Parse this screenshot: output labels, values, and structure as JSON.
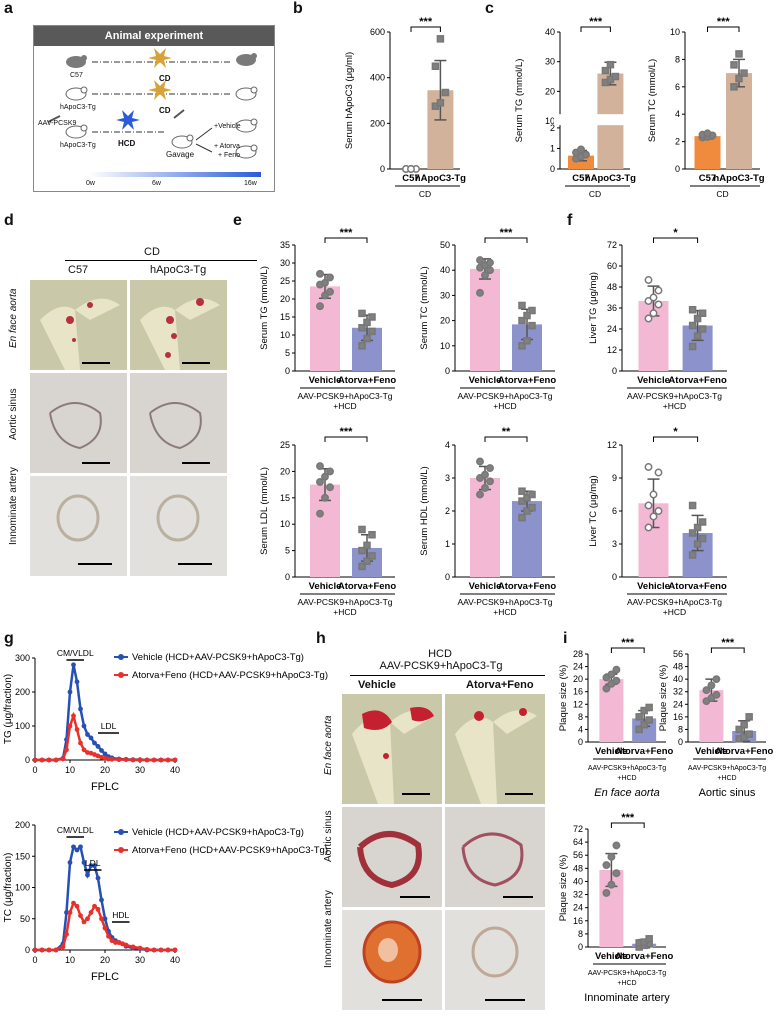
{
  "panel_labels": {
    "a": "a",
    "b": "b",
    "c": "c",
    "d": "d",
    "e": "e",
    "f": "f",
    "g": "g",
    "h": "h",
    "i": "i"
  },
  "colors": {
    "pink": "#f2b8d4",
    "purple": "#8b92cc",
    "tan": "#d2b29a",
    "orange": "#f08a3c",
    "blue": "#2750b4",
    "red": "#e8312a",
    "gray_point": "#808080"
  },
  "panel_a": {
    "title": "Animal experiment",
    "c57": "C57",
    "hapoc3": "hApoC3-Tg",
    "aav": "AAV-PCSK9",
    "hapoc3_2": "hApoC3-Tg",
    "cd1": "CD",
    "cd2": "CD",
    "hcd": "HCD",
    "gavage": "Gavage",
    "vehicle": "+Vehicle",
    "atorva": "+ Atorva",
    "feno": "+ Feno",
    "w0": "0w",
    "w6": "6w",
    "w16": "16w"
  },
  "panel_d": {
    "group": "CD",
    "col1": "C57",
    "col2": "hApoC3-Tg",
    "row1": "En face  aorta",
    "row2": "Aortic sinus",
    "row3": "Innominate artery"
  },
  "panel_h": {
    "group": "HCD",
    "group2": "AAV-PCSK9+hApoC3-Tg",
    "col1": "Vehicle",
    "col2": "Atorva+Feno",
    "row1": "En face  aorta",
    "row2": "Aortic sinus",
    "row3": "Innominate artery"
  },
  "chart_data": [
    {
      "id": "b",
      "type": "bar",
      "ylabel": "Serum hApoC3 (μg/ml)",
      "ylim": [
        0,
        600
      ],
      "yticks": [
        "0",
        "200",
        "400",
        "600"
      ],
      "categories": [
        "C57",
        "hApoC3-Tg"
      ],
      "values": [
        0,
        345
      ],
      "errors": [
        0,
        130
      ],
      "points": [
        [
          0,
          0,
          0,
          0,
          0
        ],
        [
          275,
          290,
          335,
          450,
          570
        ]
      ],
      "xgroup": "CD",
      "sig": "***"
    },
    {
      "id": "c1",
      "type": "bar",
      "ylabel": "Serum TG (mmol/L)",
      "ylim": [
        0,
        40
      ],
      "yticks": [
        "0",
        "1",
        "2",
        "10",
        "20",
        "30",
        "40"
      ],
      "categories": [
        "C57",
        "hApoC3-Tg"
      ],
      "values": [
        0.65,
        26
      ],
      "errors": [
        0.25,
        3.8
      ],
      "points": [
        [
          0.5,
          0.6,
          0.7,
          0.8,
          0.95
        ],
        [
          23,
          24,
          25,
          27,
          29
        ]
      ],
      "xgroup": "CD",
      "sig": "***"
    },
    {
      "id": "c2",
      "type": "bar",
      "ylabel": "Serum TC (mmol/L)",
      "ylim": [
        0,
        10
      ],
      "yticks": [
        "0",
        "2",
        "4",
        "6",
        "8",
        "10"
      ],
      "categories": [
        "C57",
        "hApoC3-Tg"
      ],
      "values": [
        2.4,
        7.0
      ],
      "errors": [
        0.2,
        1.0
      ],
      "points": [
        [
          2.3,
          2.35,
          2.45,
          2.5,
          2.6
        ],
        [
          6.0,
          6.6,
          7.0,
          7.6,
          8.4
        ]
      ],
      "xgroup": "CD",
      "sig": "***"
    },
    {
      "id": "e1",
      "type": "bar",
      "ylabel": "Serum TG (mmol/L)",
      "ylim": [
        0,
        35
      ],
      "yticks": [
        "0",
        "5",
        "10",
        "15",
        "20",
        "25",
        "30",
        "35"
      ],
      "categories": [
        "Vehicle",
        "Atorva+Feno"
      ],
      "values": [
        23.5,
        12
      ],
      "errors": [
        3.3,
        3.5
      ],
      "points": [
        [
          18,
          21,
          22,
          24,
          24.5,
          26,
          27
        ],
        [
          7,
          9,
          11,
          12,
          13.5,
          15,
          16
        ]
      ],
      "xgroup": "AAV-PCSK9+hApoC3-Tg",
      "xgroup2": "+HCD",
      "sig": "***"
    },
    {
      "id": "e2",
      "type": "bar",
      "ylabel": "Serum TC (mmol/L)",
      "ylim": [
        0,
        50
      ],
      "yticks": [
        "0",
        "10",
        "20",
        "30",
        "40",
        "50"
      ],
      "categories": [
        "Vehicle",
        "Atorva+Feno"
      ],
      "values": [
        40.5,
        18.5
      ],
      "errors": [
        4,
        6
      ],
      "points": [
        [
          31,
          38,
          40,
          41,
          42,
          43,
          44
        ],
        [
          10,
          12,
          18,
          20,
          22,
          24,
          26
        ]
      ],
      "xgroup": "AAV-PCSK9+hApoC3-Tg",
      "xgroup2": "+HCD",
      "sig": "***"
    },
    {
      "id": "f1",
      "type": "bar",
      "ylabel": "Liver TG (μg/mg)",
      "ylim": [
        0,
        72
      ],
      "yticks": [
        "0",
        "12",
        "24",
        "36",
        "48",
        "60",
        "72"
      ],
      "categories": [
        "Vehicle",
        "Atorva+Feno"
      ],
      "values": [
        40,
        26
      ],
      "errors": [
        8.5,
        8.5
      ],
      "points": [
        [
          30,
          33,
          38,
          40,
          42,
          46,
          52
        ],
        [
          14,
          20,
          24,
          26,
          30,
          33,
          35
        ]
      ],
      "xgroup": "AAV-PCSK9+hApoC3-Tg",
      "xgroup2": "+HCD",
      "sig": "*"
    },
    {
      "id": "e3",
      "type": "bar",
      "ylabel": "Serum LDL (mmol/L)",
      "ylim": [
        0,
        25
      ],
      "yticks": [
        "0",
        "5",
        "10",
        "15",
        "20",
        "25"
      ],
      "categories": [
        "Vehicle",
        "Atorva+Feno"
      ],
      "values": [
        17.5,
        5.5
      ],
      "errors": [
        3,
        2.5
      ],
      "points": [
        [
          12,
          15,
          17,
          18,
          19,
          20,
          21
        ],
        [
          2,
          3,
          4,
          5,
          6,
          8,
          9
        ]
      ],
      "xgroup": "AAV-PCSK9+hApoC3-Tg",
      "xgroup2": "+HCD",
      "sig": "***"
    },
    {
      "id": "e4",
      "type": "bar",
      "ylabel": "Serum HDL (mmol/L)",
      "ylim": [
        0,
        4
      ],
      "yticks": [
        "0",
        "1",
        "2",
        "3",
        "4"
      ],
      "categories": [
        "Vehicle",
        "Atorva+Feno"
      ],
      "values": [
        3.0,
        2.3
      ],
      "errors": [
        0.35,
        0.3
      ],
      "points": [
        [
          2.5,
          2.7,
          2.9,
          3.0,
          3.1,
          3.3,
          3.5
        ],
        [
          1.8,
          2.0,
          2.1,
          2.3,
          2.4,
          2.5,
          2.6
        ]
      ],
      "xgroup": "AAV-PCSK9+hApoC3-Tg",
      "xgroup2": "+HCD",
      "sig": "**"
    },
    {
      "id": "f2",
      "type": "bar",
      "ylabel": "Liver TC (μg/mg)",
      "ylim": [
        0,
        12
      ],
      "yticks": [
        "0",
        "3",
        "6",
        "9",
        "12"
      ],
      "categories": [
        "Vehicle",
        "Atorva+Feno"
      ],
      "values": [
        6.7,
        4.0
      ],
      "errors": [
        2.2,
        1.6
      ],
      "points": [
        [
          4.5,
          5.5,
          6,
          6.5,
          7.5,
          9.5,
          10
        ],
        [
          2,
          3,
          3.5,
          4,
          4.5,
          5,
          6.5
        ]
      ],
      "xgroup": "AAV-PCSK9+hApoC3-Tg",
      "xgroup2": "+HCD",
      "sig": "*"
    },
    {
      "id": "g1",
      "type": "line",
      "ylabel": "TG (μg/fraction)",
      "xlabel": "FPLC",
      "xlim": [
        0,
        40
      ],
      "ylim": [
        0,
        300
      ],
      "xticks": [
        "0",
        "10",
        "20",
        "30",
        "40"
      ],
      "yticks": [
        "0",
        "100",
        "200",
        "300"
      ],
      "annotations": [
        "CM/VLDL",
        "LDL"
      ],
      "series": [
        {
          "name": "Vehicle (HCD+AAV-PCSK9+hApoC3-Tg)",
          "color": "#2750b4",
          "x": [
            0,
            2,
            4,
            6,
            8,
            9,
            10,
            11,
            12,
            13,
            14,
            15,
            16,
            17,
            18,
            19,
            20,
            21,
            22,
            24,
            26,
            28,
            30,
            32,
            34,
            36,
            38,
            40
          ],
          "y": [
            0,
            0,
            0,
            0,
            5,
            60,
            200,
            280,
            230,
            150,
            100,
            75,
            65,
            50,
            40,
            28,
            18,
            10,
            6,
            3,
            2,
            1,
            1,
            0,
            0,
            0,
            0,
            0
          ]
        },
        {
          "name": "Atorva+Feno (HCD+AAV-PCSK9+hApoC3-Tg)",
          "color": "#e8312a",
          "x": [
            0,
            2,
            4,
            6,
            8,
            9,
            10,
            11,
            12,
            13,
            14,
            15,
            16,
            17,
            18,
            19,
            20,
            21,
            22,
            24,
            26,
            28,
            30,
            32,
            34,
            36,
            38,
            40
          ],
          "y": [
            0,
            0,
            0,
            0,
            3,
            30,
            100,
            130,
            90,
            50,
            30,
            22,
            20,
            16,
            12,
            8,
            5,
            3,
            2,
            1,
            1,
            0,
            0,
            0,
            0,
            0,
            0,
            0
          ]
        }
      ]
    },
    {
      "id": "g2",
      "type": "line",
      "ylabel": "TC (μg/fraction)",
      "xlabel": "FPLC",
      "xlim": [
        0,
        40
      ],
      "ylim": [
        0,
        200
      ],
      "xticks": [
        "0",
        "10",
        "20",
        "30",
        "40"
      ],
      "yticks": [
        "0",
        "50",
        "100",
        "150",
        "200"
      ],
      "annotations": [
        "CM/VLDL",
        "LDL",
        "HDL"
      ],
      "series": [
        {
          "name": "Vehicle (HCD+AAV-PCSK9+hApoC3-Tg)",
          "color": "#2750b4",
          "x": [
            0,
            2,
            4,
            6,
            8,
            9,
            10,
            11,
            12,
            13,
            14,
            15,
            16,
            17,
            18,
            19,
            20,
            21,
            22,
            23,
            24,
            25,
            26,
            28,
            30,
            32,
            34,
            36,
            38,
            40
          ],
          "y": [
            0,
            0,
            0,
            0,
            10,
            60,
            140,
            165,
            160,
            165,
            140,
            120,
            135,
            135,
            115,
            80,
            50,
            30,
            20,
            15,
            12,
            10,
            6,
            3,
            2,
            0,
            0,
            0,
            0,
            0
          ]
        },
        {
          "name": "Atorva+Feno (HCD+AAV-PCSK9+hApoC3-Tg)",
          "color": "#e8312a",
          "x": [
            0,
            2,
            4,
            6,
            8,
            9,
            10,
            11,
            12,
            13,
            14,
            15,
            16,
            17,
            18,
            19,
            20,
            21,
            22,
            23,
            24,
            25,
            26,
            28,
            30,
            32,
            34,
            36,
            38,
            40
          ],
          "y": [
            0,
            0,
            0,
            0,
            5,
            25,
            60,
            75,
            70,
            55,
            45,
            50,
            60,
            70,
            65,
            50,
            35,
            22,
            15,
            12,
            12,
            10,
            8,
            5,
            3,
            1,
            0,
            0,
            0,
            0
          ]
        }
      ]
    },
    {
      "id": "i1",
      "type": "bar",
      "ylabel": "Plaque size (%)",
      "ylim": [
        0,
        28
      ],
      "yticks": [
        "0",
        "4",
        "8",
        "12",
        "16",
        "20",
        "24",
        "28"
      ],
      "categories": [
        "Vehicle",
        "Atorva+Feno"
      ],
      "values": [
        20,
        7.5
      ],
      "errors": [
        1.6,
        2.5
      ],
      "points": [
        [
          17,
          18.5,
          19.5,
          20.5,
          21.5,
          23
        ],
        [
          4,
          5.5,
          7,
          8,
          10,
          11
        ]
      ],
      "xgroup": "AAV-PCSK9+hApoC3-Tg",
      "xgroup2": "+HCD",
      "caption": "En face  aorta",
      "sig": "***"
    },
    {
      "id": "i2",
      "type": "bar",
      "ylabel": "Plaque size (%)",
      "ylim": [
        0,
        56
      ],
      "yticks": [
        "0",
        "8",
        "16",
        "24",
        "32",
        "40",
        "48",
        "56"
      ],
      "categories": [
        "Vehicle",
        "Atorva+Feno"
      ],
      "values": [
        33,
        7
      ],
      "errors": [
        7,
        6.5
      ],
      "points": [
        [
          26,
          28,
          30,
          33,
          36,
          40
        ],
        [
          2,
          3,
          5,
          8,
          11,
          16
        ]
      ],
      "xgroup": "AAV-PCSK9+hApoC3-Tg",
      "xgroup2": "+HCD",
      "caption": "Aortic sinus",
      "sig": "***"
    },
    {
      "id": "i3",
      "type": "bar",
      "ylabel": "Plaque size (%)",
      "ylim": [
        0,
        72
      ],
      "yticks": [
        "0",
        "8",
        "16",
        "24",
        "32",
        "40",
        "48",
        "56",
        "64",
        "72"
      ],
      "categories": [
        "Vehicle",
        "Atorva+Feno"
      ],
      "values": [
        47,
        2
      ],
      "errors": [
        10,
        2.5
      ],
      "points": [
        [
          33,
          38,
          45,
          50,
          55,
          62
        ],
        [
          0,
          1,
          2,
          2.5,
          3,
          5
        ]
      ],
      "xgroup": "AAV-PCSK9+hApoC3-Tg",
      "xgroup2": "+HCD",
      "caption": "Innominate artery",
      "sig": "***"
    }
  ]
}
